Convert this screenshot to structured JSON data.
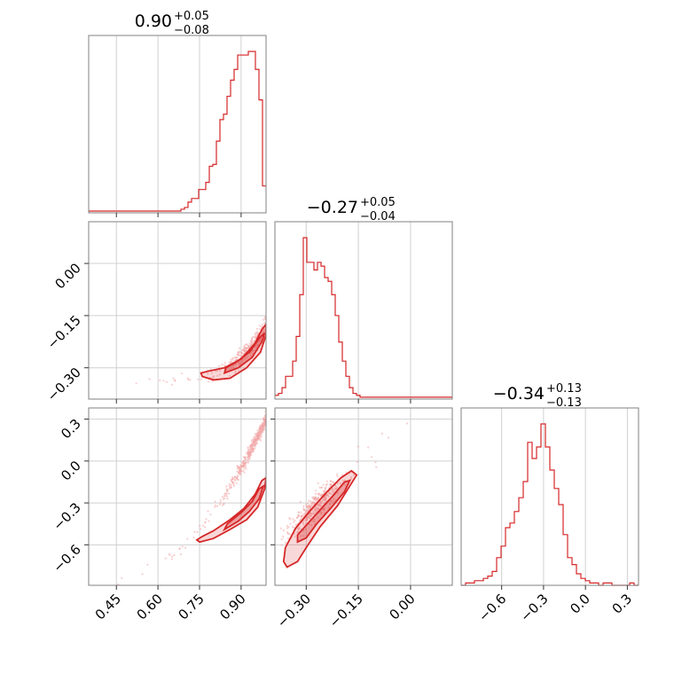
{
  "chart_data": {
    "type": "corner",
    "color": "#d62728",
    "point_color": "#f2a8a8",
    "params": [
      {
        "range": [
          0.35,
          0.99
        ],
        "ticks": [
          0.45,
          0.6,
          0.75,
          0.9
        ],
        "tick_labels": [
          "0.45",
          "0.60",
          "0.75",
          "0.90"
        ],
        "title_median": "0.90",
        "title_plus": "+0.05",
        "title_minus": "−0.08"
      },
      {
        "range": [
          -0.39,
          0.12
        ],
        "ticks": [
          -0.3,
          -0.15,
          0.0
        ],
        "tick_labels": [
          "−0.30",
          "−0.15",
          "0.00"
        ],
        "title_median": "−0.27",
        "title_plus": "+0.05",
        "title_minus": "−0.04"
      },
      {
        "range": [
          -0.89,
          0.38
        ],
        "ticks": [
          -0.6,
          -0.3,
          0.0,
          0.3
        ],
        "tick_labels": [
          "−0.6",
          "−0.3",
          "0.0",
          "0.3"
        ],
        "title_median": "−0.34",
        "title_plus": "+0.13",
        "title_minus": "−0.13"
      }
    ],
    "histograms": [
      {
        "param": 0,
        "bins_lo": 0.35,
        "bins_hi": 0.99,
        "counts": [
          1,
          1,
          1,
          1,
          1,
          1,
          1,
          1,
          1,
          1,
          1,
          1,
          1,
          1,
          1,
          1,
          1,
          1,
          1,
          1,
          1,
          1,
          1,
          1,
          1,
          1,
          2,
          3,
          6,
          8,
          8,
          13,
          13,
          17,
          26,
          27,
          40,
          52,
          55,
          65,
          74,
          80,
          88,
          88,
          88,
          90,
          90,
          80,
          63,
          15
        ]
      },
      {
        "param": 1,
        "bins_lo": -0.39,
        "bins_hi": 0.12,
        "counts": [
          2,
          3,
          6,
          12,
          12,
          20,
          33,
          55,
          85,
          72,
          72,
          68,
          72,
          70,
          64,
          62,
          55,
          44,
          30,
          20,
          12,
          6,
          3,
          2,
          1,
          1,
          1,
          1,
          1,
          1,
          1,
          1,
          1,
          1,
          1,
          1,
          1,
          1,
          1,
          1,
          1,
          1,
          1,
          1,
          1,
          1,
          1,
          1,
          1,
          1
        ]
      },
      {
        "param": 2,
        "bins_lo": -0.89,
        "bins_hi": 0.38,
        "counts": [
          0,
          1,
          1,
          2,
          2,
          3,
          4,
          6,
          12,
          17,
          25,
          27,
          32,
          38,
          45,
          62,
          55,
          60,
          70,
          60,
          50,
          42,
          35,
          22,
          12,
          9,
          5,
          3,
          2,
          1,
          1,
          0,
          1,
          1,
          0,
          0,
          0,
          0,
          1,
          0
        ]
      }
    ],
    "pairs": [
      {
        "x": 0,
        "y": 1
      },
      {
        "x": 0,
        "y": 2
      },
      {
        "x": 1,
        "y": 2
      }
    ]
  }
}
